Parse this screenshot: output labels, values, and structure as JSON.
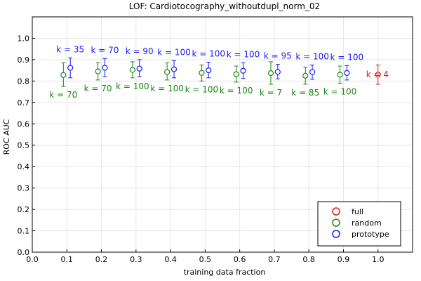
{
  "chart_data": {
    "type": "scatter",
    "title": "LOF: Cardiotocography_withoutdupl_norm_02",
    "xlabel": "training data fraction",
    "ylabel": "ROC AUC",
    "xlim": [
      0.0,
      1.1
    ],
    "ylim": [
      0.0,
      1.1
    ],
    "x_ticks": [
      "0.0",
      "0.1",
      "0.2",
      "0.3",
      "0.4",
      "0.5",
      "0.6",
      "0.7",
      "0.8",
      "0.9",
      "1.0"
    ],
    "y_ticks": [
      "0.0",
      "0.1",
      "0.2",
      "0.3",
      "0.4",
      "0.5",
      "0.6",
      "0.7",
      "0.8",
      "0.9",
      "1.0"
    ],
    "grid": true,
    "legend_position": "bottom-right",
    "series": [
      {
        "name": "full",
        "color": "#e41a1c",
        "label_position": "right",
        "points": [
          {
            "x": 1.0,
            "y": 0.83,
            "low": 0.785,
            "high": 0.875,
            "label": "k = 4"
          }
        ]
      },
      {
        "name": "random",
        "color": "#138a13",
        "label_position": "below",
        "points": [
          {
            "x": 0.1,
            "y": 0.828,
            "low": 0.775,
            "high": 0.885,
            "label": "k = 70"
          },
          {
            "x": 0.2,
            "y": 0.845,
            "low": 0.805,
            "high": 0.885,
            "label": "k = 70"
          },
          {
            "x": 0.3,
            "y": 0.852,
            "low": 0.815,
            "high": 0.89,
            "label": "k = 100"
          },
          {
            "x": 0.4,
            "y": 0.842,
            "low": 0.805,
            "high": 0.885,
            "label": "k = 100"
          },
          {
            "x": 0.5,
            "y": 0.838,
            "low": 0.8,
            "high": 0.875,
            "label": "k = 100"
          },
          {
            "x": 0.6,
            "y": 0.832,
            "low": 0.795,
            "high": 0.87,
            "label": "k = 100"
          },
          {
            "x": 0.7,
            "y": 0.837,
            "low": 0.785,
            "high": 0.89,
            "label": "k = 7"
          },
          {
            "x": 0.8,
            "y": 0.825,
            "low": 0.785,
            "high": 0.865,
            "label": "k = 85"
          },
          {
            "x": 0.9,
            "y": 0.83,
            "low": 0.79,
            "high": 0.87,
            "label": "k = 100"
          }
        ]
      },
      {
        "name": "prototype",
        "color": "#1a1aff",
        "label_position": "above",
        "points": [
          {
            "x": 0.1,
            "y": 0.862,
            "low": 0.815,
            "high": 0.908,
            "label": "k = 35"
          },
          {
            "x": 0.2,
            "y": 0.862,
            "low": 0.82,
            "high": 0.905,
            "label": "k = 70"
          },
          {
            "x": 0.3,
            "y": 0.858,
            "low": 0.82,
            "high": 0.9,
            "label": "k = 90"
          },
          {
            "x": 0.4,
            "y": 0.855,
            "low": 0.815,
            "high": 0.895,
            "label": "k = 100"
          },
          {
            "x": 0.5,
            "y": 0.85,
            "low": 0.815,
            "high": 0.888,
            "label": "k = 100"
          },
          {
            "x": 0.6,
            "y": 0.848,
            "low": 0.812,
            "high": 0.885,
            "label": "k = 100"
          },
          {
            "x": 0.7,
            "y": 0.843,
            "low": 0.81,
            "high": 0.878,
            "label": "k = 95"
          },
          {
            "x": 0.8,
            "y": 0.842,
            "low": 0.808,
            "high": 0.875,
            "label": "k = 100"
          },
          {
            "x": 0.9,
            "y": 0.838,
            "low": 0.805,
            "high": 0.872,
            "label": "k = 100"
          }
        ]
      }
    ]
  }
}
